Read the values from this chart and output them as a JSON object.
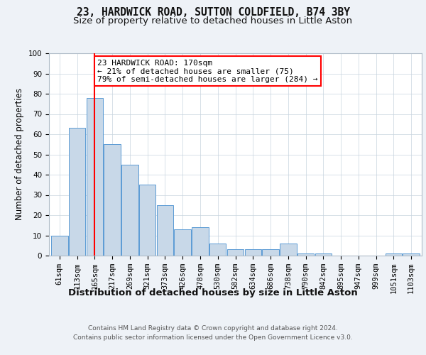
{
  "title1": "23, HARDWICK ROAD, SUTTON COLDFIELD, B74 3BY",
  "title2": "Size of property relative to detached houses in Little Aston",
  "xlabel": "Distribution of detached houses by size in Little Aston",
  "ylabel": "Number of detached properties",
  "bar_labels": [
    "61sqm",
    "113sqm",
    "165sqm",
    "217sqm",
    "269sqm",
    "321sqm",
    "373sqm",
    "426sqm",
    "478sqm",
    "530sqm",
    "582sqm",
    "634sqm",
    "686sqm",
    "738sqm",
    "790sqm",
    "842sqm",
    "895sqm",
    "947sqm",
    "999sqm",
    "1051sqm",
    "1103sqm"
  ],
  "bar_heights": [
    10,
    63,
    78,
    55,
    45,
    35,
    25,
    13,
    14,
    6,
    3,
    3,
    3,
    6,
    1,
    1,
    0,
    0,
    0,
    1,
    1
  ],
  "bar_color": "#c8d8e8",
  "bar_edge_color": "#5b9bd5",
  "red_line_index": 2,
  "annotation_text": "23 HARDWICK ROAD: 170sqm\n← 21% of detached houses are smaller (75)\n79% of semi-detached houses are larger (284) →",
  "ylim": [
    0,
    100
  ],
  "footnote1": "Contains HM Land Registry data © Crown copyright and database right 2024.",
  "footnote2": "Contains public sector information licensed under the Open Government Licence v3.0.",
  "background_color": "#eef2f7",
  "plot_bg_color": "#ffffff",
  "title1_fontsize": 10.5,
  "title2_fontsize": 9.5,
  "xlabel_fontsize": 9.5,
  "ylabel_fontsize": 8.5,
  "tick_fontsize": 7.5,
  "annotation_fontsize": 8,
  "footnote_fontsize": 6.5
}
